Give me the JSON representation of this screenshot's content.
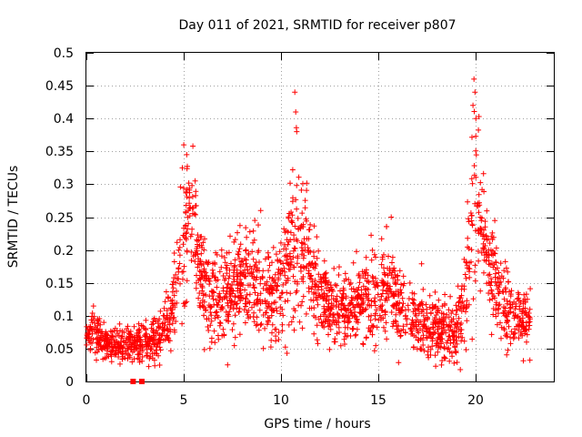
{
  "chart_data": {
    "type": "scatter",
    "title": "Day 011 of 2021, SRMTID for receiver p807",
    "xlabel": "GPS time / hours",
    "ylabel": "SRMTID / TECUs",
    "xlim": [
      0,
      24
    ],
    "ylim": [
      0,
      0.5
    ],
    "x_ticks": [
      0,
      5,
      10,
      15,
      20
    ],
    "x_tick_labels": [
      "0",
      "5",
      "10",
      "15",
      "20"
    ],
    "y_ticks": [
      0,
      0.05,
      0.1,
      0.15,
      0.2,
      0.25,
      0.3,
      0.35,
      0.4,
      0.45,
      0.5
    ],
    "y_tick_labels": [
      "0",
      "0.05",
      "0.1",
      "0.15",
      "0.2",
      "0.25",
      "0.3",
      "0.35",
      "0.4",
      "0.45",
      "0.5"
    ],
    "grid": true,
    "marker": "plus",
    "color": "#ff0000",
    "gap_markers_x": [
      2.4,
      2.85
    ],
    "gap_markers_y": [
      0,
      0
    ],
    "series": [
      {
        "name": "SRMTID",
        "envelope_hours": [
          0.0,
          0.3,
          1.0,
          2.0,
          3.0,
          4.0,
          4.6,
          5.0,
          5.3,
          5.8,
          6.3,
          7.0,
          7.8,
          8.5,
          9.2,
          10.0,
          10.7,
          11.2,
          12.0,
          13.0,
          14.0,
          15.0,
          15.5,
          16.2,
          17.0,
          18.0,
          19.0,
          19.5,
          20.0,
          20.3,
          20.8,
          21.5,
          22.0,
          22.8
        ],
        "envelope_mean": [
          0.065,
          0.08,
          0.055,
          0.055,
          0.06,
          0.075,
          0.13,
          0.22,
          0.27,
          0.18,
          0.13,
          0.12,
          0.15,
          0.16,
          0.12,
          0.14,
          0.2,
          0.2,
          0.13,
          0.11,
          0.12,
          0.13,
          0.14,
          0.11,
          0.09,
          0.08,
          0.075,
          0.15,
          0.27,
          0.22,
          0.17,
          0.11,
          0.1,
          0.09
        ],
        "envelope_spread": [
          0.015,
          0.03,
          0.015,
          0.02,
          0.02,
          0.025,
          0.04,
          0.08,
          0.06,
          0.05,
          0.05,
          0.05,
          0.05,
          0.05,
          0.04,
          0.06,
          0.1,
          0.07,
          0.04,
          0.04,
          0.04,
          0.05,
          0.05,
          0.04,
          0.03,
          0.03,
          0.03,
          0.06,
          0.1,
          0.06,
          0.05,
          0.04,
          0.03,
          0.03
        ],
        "peaks": [
          {
            "x": 5.0,
            "y": 0.36
          },
          {
            "x": 5.15,
            "y": 0.345
          },
          {
            "x": 10.7,
            "y": 0.44
          },
          {
            "x": 10.75,
            "y": 0.41
          },
          {
            "x": 10.8,
            "y": 0.38
          },
          {
            "x": 19.9,
            "y": 0.46
          },
          {
            "x": 19.95,
            "y": 0.44
          },
          {
            "x": 19.85,
            "y": 0.42
          },
          {
            "x": 20.0,
            "y": 0.4
          },
          {
            "x": 8.95,
            "y": 0.26
          },
          {
            "x": 15.65,
            "y": 0.25
          },
          {
            "x": 19.2,
            "y": 0.018
          },
          {
            "x": 1.3,
            "y": 0.03
          }
        ],
        "point_count": 2300
      }
    ]
  }
}
